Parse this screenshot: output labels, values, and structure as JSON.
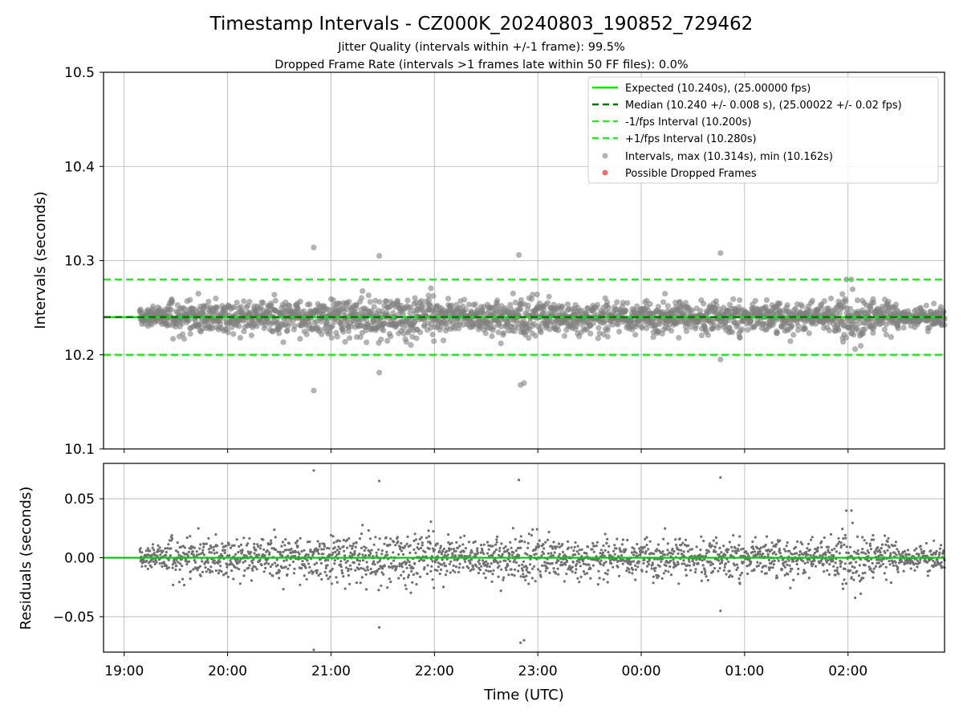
{
  "chart_data": [
    {
      "type": "scatter",
      "title": "Timestamp Intervals - CZ000K_20240803_190852_729462",
      "subtitle_1": "Jitter Quality (intervals within +/-1 frame): 99.5%",
      "subtitle_2": "Dropped Frame Rate (intervals >1 frames late within 50 FF files): 0.0%",
      "ylabel": "Intervals (seconds)",
      "ylim": [
        10.1,
        10.5
      ],
      "yticks": [
        "10.1",
        "10.2",
        "10.3",
        "10.4",
        "10.5"
      ],
      "grid": true,
      "legend_position": "upper-right",
      "lines": [
        {
          "name": "Expected (10.240s), (25.00000 fps)",
          "y": 10.24,
          "style": "solid",
          "color": "#00ee00"
        },
        {
          "name": "Median (10.240 +/- 0.008 s), (25.00022 +/- 0.02 fps)",
          "y": 10.24,
          "style": "dashed",
          "color": "#007700"
        },
        {
          "name": "-1/fps Interval (10.200s)",
          "y": 10.2,
          "style": "dashed",
          "color": "#22ee22"
        },
        {
          "name": "+1/fps Interval (10.280s)",
          "y": 10.28,
          "style": "dashed",
          "color": "#22ee22"
        }
      ],
      "series": [
        {
          "name": "Intervals, max (10.314s), min (10.162s)",
          "color": "#808080",
          "max": 10.314,
          "min": 10.162,
          "center": 10.24,
          "spread": 0.0085,
          "count": 2300
        },
        {
          "name": "Possible Dropped Frames",
          "color": "#f05050",
          "count": 0
        }
      ],
      "notable_points": [
        {
          "x": "20:50",
          "y": 10.314
        },
        {
          "x": "20:50",
          "y": 10.162
        },
        {
          "x": "21:28",
          "y": 10.305
        },
        {
          "x": "21:28",
          "y": 10.181
        },
        {
          "x": "22:49",
          "y": 10.306
        },
        {
          "x": "22:50",
          "y": 10.168
        },
        {
          "x": "22:52",
          "y": 10.17
        },
        {
          "x": "00:46",
          "y": 10.308
        },
        {
          "x": "00:46",
          "y": 10.195
        },
        {
          "x": "01:59",
          "y": 10.28
        },
        {
          "x": "02:02",
          "y": 10.28
        }
      ],
      "x_range": [
        "18:48",
        "02:56"
      ]
    },
    {
      "type": "scatter",
      "xlabel": "Time (UTC)",
      "ylabel": "Residuals (seconds)",
      "ylim": [
        -0.08,
        0.08
      ],
      "yticks": [
        "−0.05",
        "0.00",
        "0.05"
      ],
      "xticks": [
        "19:00",
        "20:00",
        "21:00",
        "22:00",
        "23:00",
        "00:00",
        "01:00",
        "02:00"
      ],
      "grid": true,
      "zero_line_color": "#00cc00",
      "series": [
        {
          "name": "Residuals",
          "color": "#707070",
          "max": 0.074,
          "min": -0.078,
          "center": 0.0,
          "spread": 0.0085
        }
      ]
    }
  ]
}
